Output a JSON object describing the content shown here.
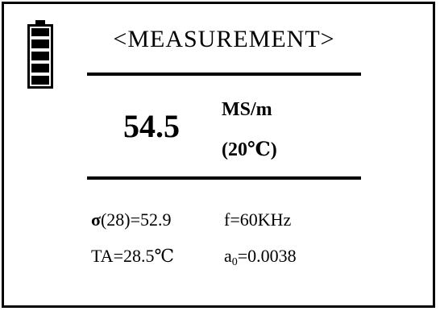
{
  "header": {
    "title": "<MEASUREMENT>"
  },
  "battery": {
    "icon": "battery-icon",
    "bars": 5
  },
  "reading": {
    "value": "54.5",
    "unit": "MS/m",
    "temperature": "(20℃)"
  },
  "parameters": {
    "sigma_symbol": "σ",
    "sigma_text": "(28)=52.9",
    "frequency": "f=60KHz",
    "ambient_temp": "TA=28.5℃",
    "a0_prefix": "a",
    "a0_sub": "0",
    "a0_value": "=0.0038"
  }
}
